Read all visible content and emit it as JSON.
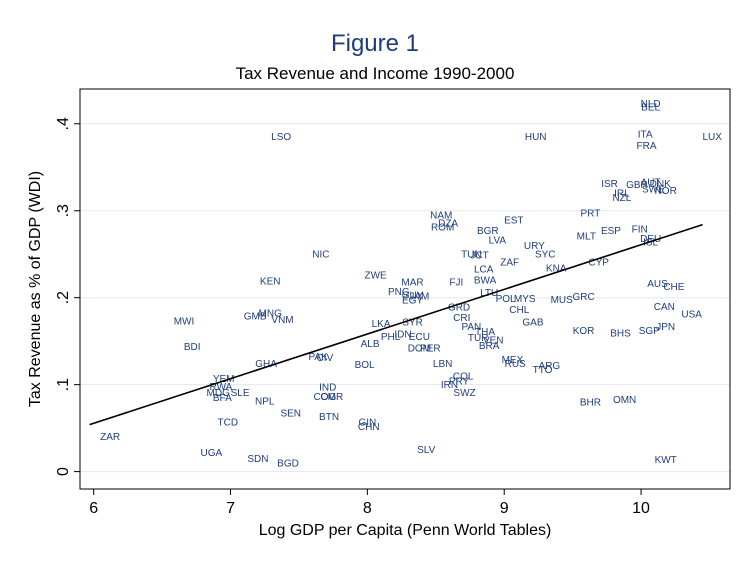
{
  "figure_label": "Figure 1",
  "chart_data": {
    "type": "scatter",
    "title": "Tax Revenue and Income 1990-2000",
    "xlabel": "Log GDP per Capita (Penn World Tables)",
    "ylabel": "Tax Revenue as % of GDP (WDI)",
    "xlim": [
      5.9,
      10.65
    ],
    "ylim": [
      -0.02,
      0.44
    ],
    "xticks": [
      6,
      7,
      8,
      9,
      10
    ],
    "yticks": [
      0,
      0.1,
      0.2,
      0.3,
      0.4
    ],
    "ytick_labels": [
      "0",
      ".1",
      ".2",
      ".3",
      ".4"
    ],
    "grid": "horizontal",
    "marker_color": "#1f3d7a",
    "points": [
      {
        "label": "NLD",
        "x": 10.07,
        "y": 0.422
      },
      {
        "label": "BEL",
        "x": 10.07,
        "y": 0.418
      },
      {
        "label": "LSO",
        "x": 7.37,
        "y": 0.384
      },
      {
        "label": "HUN",
        "x": 9.23,
        "y": 0.384
      },
      {
        "label": "ITA",
        "x": 10.03,
        "y": 0.387
      },
      {
        "label": "LUX",
        "x": 10.52,
        "y": 0.384
      },
      {
        "label": "FRA",
        "x": 10.04,
        "y": 0.374
      },
      {
        "label": "ISR",
        "x": 9.77,
        "y": 0.33
      },
      {
        "label": "GBR",
        "x": 9.97,
        "y": 0.329
      },
      {
        "label": "AUT",
        "x": 10.07,
        "y": 0.332
      },
      {
        "label": "DNK",
        "x": 10.14,
        "y": 0.33
      },
      {
        "label": "SWE",
        "x": 10.09,
        "y": 0.324
      },
      {
        "label": "NOR",
        "x": 10.18,
        "y": 0.322
      },
      {
        "label": "IRL",
        "x": 9.86,
        "y": 0.319
      },
      {
        "label": "NZL",
        "x": 9.86,
        "y": 0.314
      },
      {
        "label": "PRT",
        "x": 9.63,
        "y": 0.296
      },
      {
        "label": "NAM",
        "x": 8.54,
        "y": 0.294
      },
      {
        "label": "EST",
        "x": 9.07,
        "y": 0.288
      },
      {
        "label": "DZA",
        "x": 8.59,
        "y": 0.285
      },
      {
        "label": "ROM",
        "x": 8.55,
        "y": 0.28
      },
      {
        "label": "BGR",
        "x": 8.88,
        "y": 0.276
      },
      {
        "label": "ESP",
        "x": 9.78,
        "y": 0.276
      },
      {
        "label": "FIN",
        "x": 9.99,
        "y": 0.278
      },
      {
        "label": "MLT",
        "x": 9.6,
        "y": 0.27
      },
      {
        "label": "LVA",
        "x": 8.95,
        "y": 0.265
      },
      {
        "label": "DEU",
        "x": 10.07,
        "y": 0.267
      },
      {
        "label": "ISL",
        "x": 10.07,
        "y": 0.263
      },
      {
        "label": "URY",
        "x": 9.22,
        "y": 0.259
      },
      {
        "label": "NIC",
        "x": 7.66,
        "y": 0.249
      },
      {
        "label": "TUN",
        "x": 8.76,
        "y": 0.249
      },
      {
        "label": "JCT",
        "x": 8.82,
        "y": 0.248
      },
      {
        "label": "SYC",
        "x": 9.3,
        "y": 0.249
      },
      {
        "label": "ZAF",
        "x": 9.04,
        "y": 0.24
      },
      {
        "label": "CYP",
        "x": 9.69,
        "y": 0.24
      },
      {
        "label": "LCA",
        "x": 8.85,
        "y": 0.232
      },
      {
        "label": "KNA",
        "x": 9.38,
        "y": 0.233
      },
      {
        "label": "ZWE",
        "x": 8.06,
        "y": 0.225
      },
      {
        "label": "BWA",
        "x": 8.86,
        "y": 0.219
      },
      {
        "label": "KEN",
        "x": 7.29,
        "y": 0.218
      },
      {
        "label": "MAR",
        "x": 8.33,
        "y": 0.217
      },
      {
        "label": "FJI",
        "x": 8.65,
        "y": 0.217
      },
      {
        "label": "AUS",
        "x": 10.12,
        "y": 0.215
      },
      {
        "label": "CHE",
        "x": 10.24,
        "y": 0.212
      },
      {
        "label": "PNG",
        "x": 8.23,
        "y": 0.206
      },
      {
        "label": "GUY",
        "x": 8.33,
        "y": 0.202
      },
      {
        "label": "JAM",
        "x": 8.38,
        "y": 0.201
      },
      {
        "label": "LTU",
        "x": 8.89,
        "y": 0.205
      },
      {
        "label": "EGY",
        "x": 8.33,
        "y": 0.196
      },
      {
        "label": "POL",
        "x": 9.01,
        "y": 0.198
      },
      {
        "label": "MYS",
        "x": 9.15,
        "y": 0.198
      },
      {
        "label": "GRC",
        "x": 9.58,
        "y": 0.2
      },
      {
        "label": "MUS",
        "x": 9.42,
        "y": 0.197
      },
      {
        "label": "GRD",
        "x": 8.67,
        "y": 0.188
      },
      {
        "label": "CAN",
        "x": 10.17,
        "y": 0.189
      },
      {
        "label": "CHL",
        "x": 9.11,
        "y": 0.185
      },
      {
        "label": "USA",
        "x": 10.37,
        "y": 0.18
      },
      {
        "label": "MNG",
        "x": 7.29,
        "y": 0.181
      },
      {
        "label": "GMB",
        "x": 7.18,
        "y": 0.178
      },
      {
        "label": "CRI",
        "x": 8.69,
        "y": 0.176
      },
      {
        "label": "VNM",
        "x": 7.38,
        "y": 0.174
      },
      {
        "label": "MWI",
        "x": 6.66,
        "y": 0.172
      },
      {
        "label": "SYR",
        "x": 8.33,
        "y": 0.171
      },
      {
        "label": "GAB",
        "x": 9.21,
        "y": 0.171
      },
      {
        "label": "LKA",
        "x": 8.1,
        "y": 0.169
      },
      {
        "label": "PAN",
        "x": 8.76,
        "y": 0.166
      },
      {
        "label": "JPN",
        "x": 10.18,
        "y": 0.166
      },
      {
        "label": "THA",
        "x": 8.86,
        "y": 0.16
      },
      {
        "label": "KOR",
        "x": 9.58,
        "y": 0.161
      },
      {
        "label": "SGP",
        "x": 10.06,
        "y": 0.161
      },
      {
        "label": "BHS",
        "x": 9.85,
        "y": 0.158
      },
      {
        "label": "IDN",
        "x": 8.26,
        "y": 0.157
      },
      {
        "label": "PHL",
        "x": 8.17,
        "y": 0.154
      },
      {
        "label": "ECU",
        "x": 8.38,
        "y": 0.154
      },
      {
        "label": "TUR",
        "x": 8.81,
        "y": 0.153
      },
      {
        "label": "VEN",
        "x": 8.92,
        "y": 0.15
      },
      {
        "label": "BDI",
        "x": 6.72,
        "y": 0.143
      },
      {
        "label": "ALB",
        "x": 8.02,
        "y": 0.146
      },
      {
        "label": "BRA",
        "x": 8.89,
        "y": 0.144
      },
      {
        "label": "DOM",
        "x": 8.38,
        "y": 0.141
      },
      {
        "label": "PER",
        "x": 8.46,
        "y": 0.141
      },
      {
        "label": "PAK",
        "x": 7.64,
        "y": 0.131
      },
      {
        "label": "CIV",
        "x": 7.69,
        "y": 0.13
      },
      {
        "label": "MEX",
        "x": 9.06,
        "y": 0.128
      },
      {
        "label": "GHA",
        "x": 7.26,
        "y": 0.123
      },
      {
        "label": "BOL",
        "x": 7.98,
        "y": 0.122
      },
      {
        "label": "LBN",
        "x": 8.55,
        "y": 0.123
      },
      {
        "label": "RUS",
        "x": 9.08,
        "y": 0.123
      },
      {
        "label": "ARG",
        "x": 9.33,
        "y": 0.121
      },
      {
        "label": "TTO",
        "x": 9.28,
        "y": 0.116
      },
      {
        "label": "COL",
        "x": 8.7,
        "y": 0.109
      },
      {
        "label": "YEM",
        "x": 6.95,
        "y": 0.106
      },
      {
        "label": "PRY",
        "x": 8.67,
        "y": 0.103
      },
      {
        "label": "IRN",
        "x": 8.6,
        "y": 0.099
      },
      {
        "label": "RWA",
        "x": 6.93,
        "y": 0.097
      },
      {
        "label": "IND",
        "x": 7.71,
        "y": 0.096
      },
      {
        "label": "MDG",
        "x": 6.91,
        "y": 0.09
      },
      {
        "label": "SLE",
        "x": 7.07,
        "y": 0.09
      },
      {
        "label": "SWZ",
        "x": 8.71,
        "y": 0.09
      },
      {
        "label": "CMR",
        "x": 7.74,
        "y": 0.085
      },
      {
        "label": "COG",
        "x": 7.69,
        "y": 0.085
      },
      {
        "label": "BFA",
        "x": 6.94,
        "y": 0.084
      },
      {
        "label": "NPL",
        "x": 7.25,
        "y": 0.08
      },
      {
        "label": "BHR",
        "x": 9.63,
        "y": 0.079
      },
      {
        "label": "OMN",
        "x": 9.88,
        "y": 0.082
      },
      {
        "label": "SEN",
        "x": 7.44,
        "y": 0.066
      },
      {
        "label": "BTN",
        "x": 7.72,
        "y": 0.062
      },
      {
        "label": "GIN",
        "x": 8.0,
        "y": 0.056
      },
      {
        "label": "TCD",
        "x": 6.98,
        "y": 0.056
      },
      {
        "label": "CHN",
        "x": 8.01,
        "y": 0.051
      },
      {
        "label": "ZAR",
        "x": 6.12,
        "y": 0.039
      },
      {
        "label": "SLV",
        "x": 8.43,
        "y": 0.024
      },
      {
        "label": "UGA",
        "x": 6.86,
        "y": 0.021
      },
      {
        "label": "SDN",
        "x": 7.2,
        "y": 0.014
      },
      {
        "label": "KWT",
        "x": 10.18,
        "y": 0.013
      },
      {
        "label": "BGD",
        "x": 7.42,
        "y": 0.009
      }
    ],
    "fit_line": {
      "x": [
        5.97,
        10.45
      ],
      "y": [
        0.054,
        0.284
      ]
    }
  }
}
